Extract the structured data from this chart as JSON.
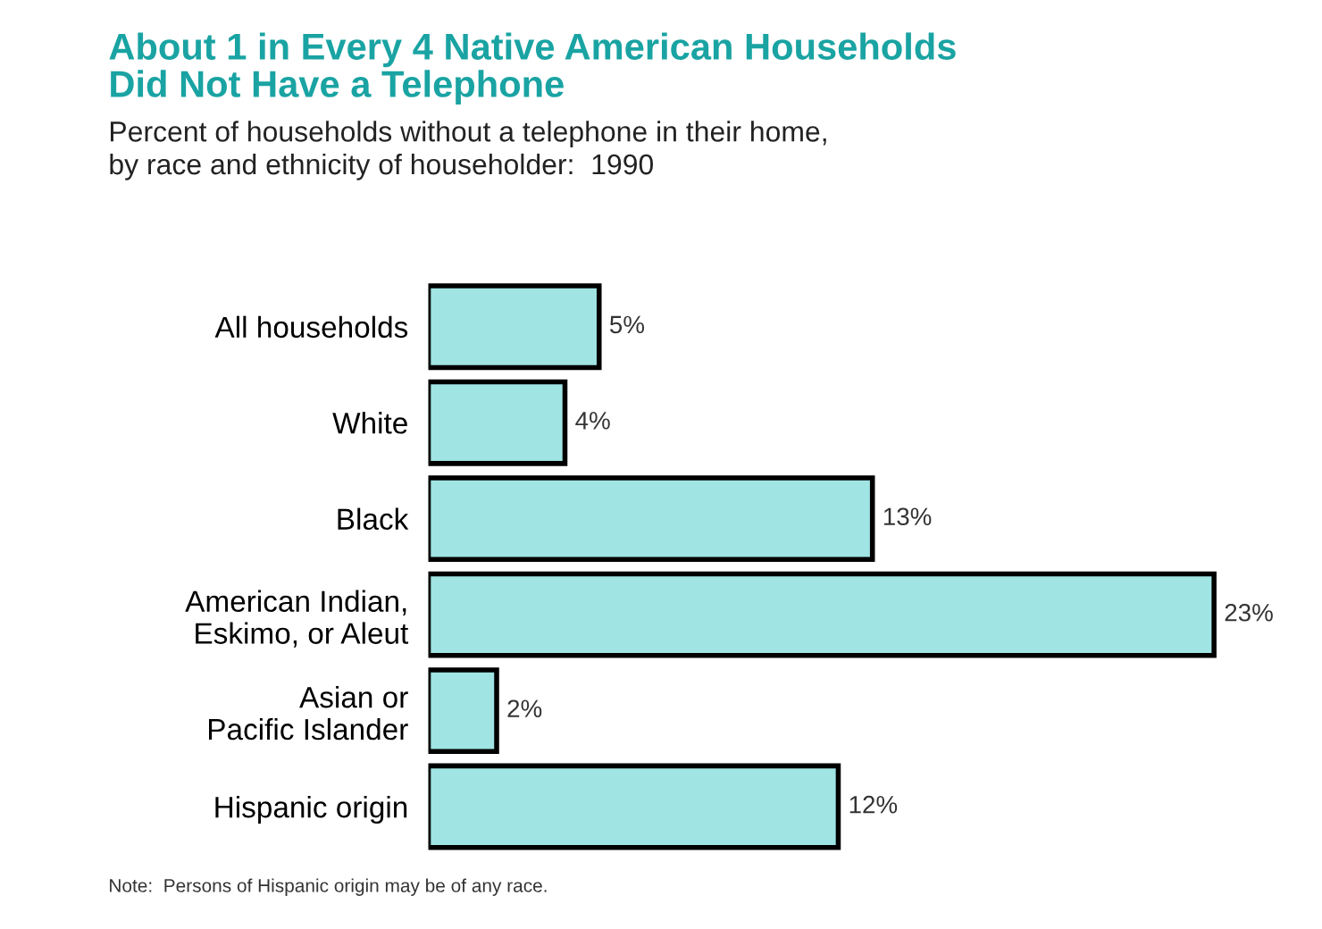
{
  "chart_data": {
    "type": "bar",
    "orientation": "horizontal",
    "title": "About 1 in Every 4 Native American Households\nDid Not Have a Telephone",
    "subtitle": "Percent of households without a telephone in their home,\nby race and ethnicity of householder:  1990",
    "categories": [
      "All households",
      "White",
      "Black",
      "American Indian,\nEskimo, or Aleut",
      "Asian or\nPacific Islander",
      "Hispanic origin"
    ],
    "values": [
      5,
      4,
      13,
      23,
      2,
      12
    ],
    "value_labels": [
      "5%",
      "4%",
      "13%",
      "23%",
      "2%",
      "12%"
    ],
    "color": "#a0e4e4",
    "tick_labels": "y",
    "grid": false,
    "annotations": [
      "Note:  Persons of Hispanic origin may be of any race."
    ]
  }
}
